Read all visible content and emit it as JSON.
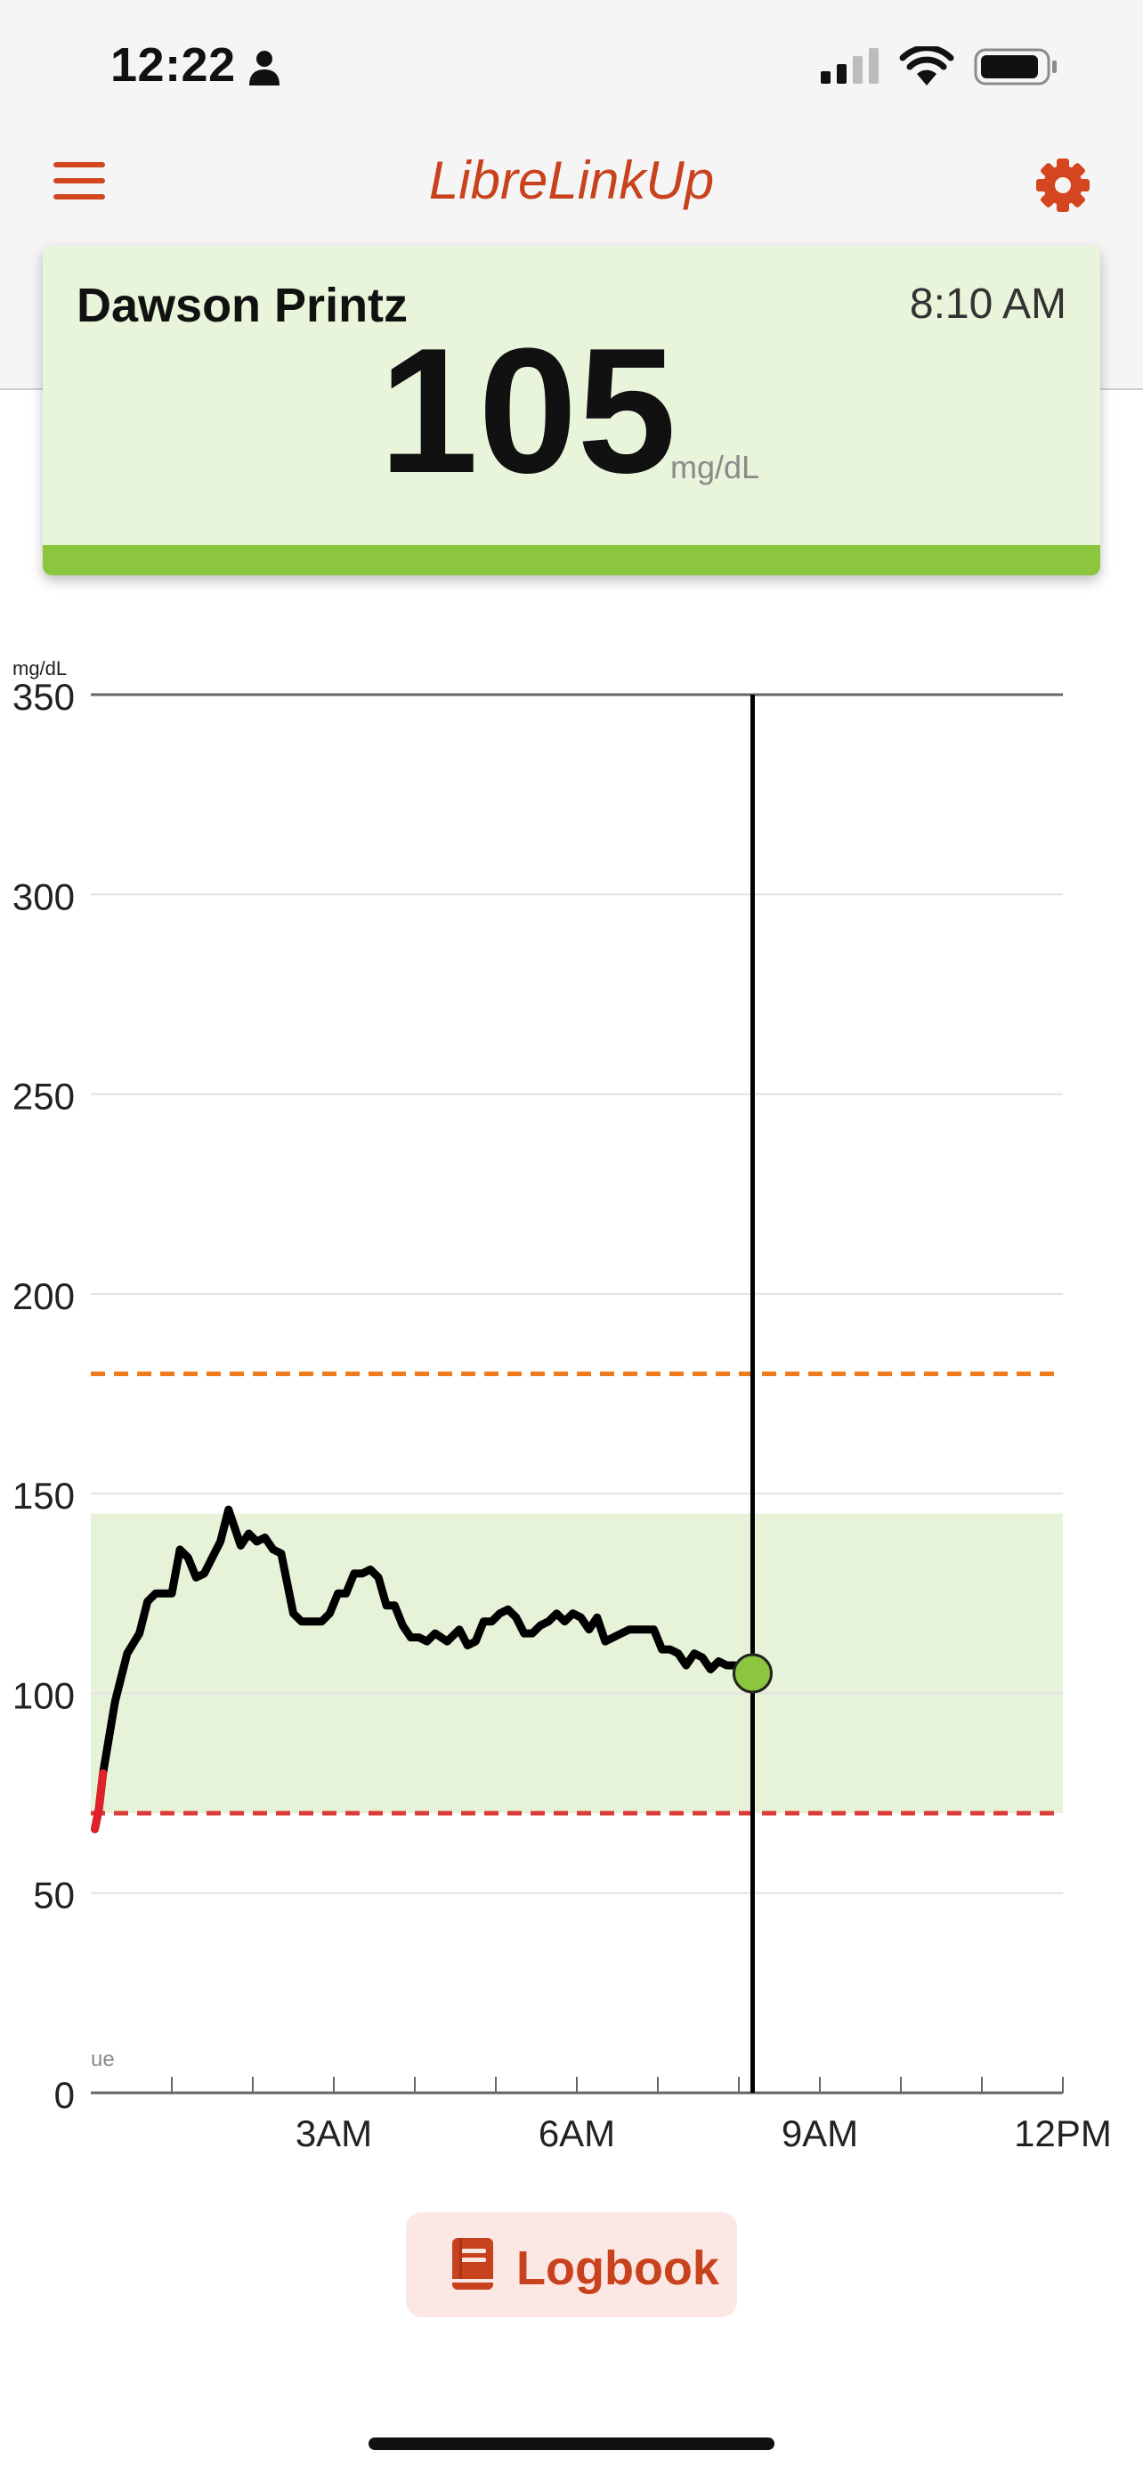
{
  "status_bar": {
    "time": "12:22"
  },
  "header": {
    "title": "LibreLinkUp"
  },
  "patient_card": {
    "name": "Dawson Printz",
    "time": "8:10 AM",
    "value": "105",
    "unit": "mg/dL",
    "status_color": "#8cc63f"
  },
  "chart_data": {
    "type": "line",
    "ylabel": "mg/dL",
    "ylim": [
      0,
      350
    ],
    "xlim": [
      0,
      12
    ],
    "yticks": [
      0,
      50,
      100,
      150,
      200,
      250,
      300,
      350
    ],
    "xtick_labels": [
      {
        "x": 3,
        "label": "3AM"
      },
      {
        "x": 6,
        "label": "6AM"
      },
      {
        "x": 9,
        "label": "9AM"
      },
      {
        "x": 12,
        "label": "12PM"
      }
    ],
    "minor_tick_hours": [
      1,
      2,
      3,
      4,
      5,
      6,
      7,
      8,
      9,
      10,
      11,
      12
    ],
    "corner_label": "ue",
    "target_range": [
      70,
      145
    ],
    "high_threshold": 180,
    "low_threshold": 70,
    "current_point": {
      "x": 8.17,
      "y": 105
    },
    "colors": {
      "line": "#000000",
      "low_segment": "#e0202a",
      "target_band": "#e6f3d9",
      "high_line": "#ee7a1c",
      "low_line": "#dc3a34",
      "current_point": "#8cc63f"
    },
    "series": [
      {
        "x": [
          0.05,
          0.1,
          0.15,
          0.3,
          0.45,
          0.6,
          0.7,
          0.8,
          1.0,
          1.1,
          1.2,
          1.3,
          1.4,
          1.5,
          1.6,
          1.7,
          1.85,
          1.95,
          2.05,
          2.15,
          2.25,
          2.35,
          2.5,
          2.6,
          2.7,
          2.85,
          2.95,
          3.05,
          3.15,
          3.25,
          3.35,
          3.45,
          3.55,
          3.65,
          3.75,
          3.85,
          3.95,
          4.05,
          4.15,
          4.25,
          4.4,
          4.55,
          4.65,
          4.75,
          4.85,
          4.95,
          5.05,
          5.15,
          5.25,
          5.35,
          5.45,
          5.55,
          5.65,
          5.75,
          5.85,
          5.95,
          6.05,
          6.15,
          6.25,
          6.35,
          6.45,
          6.55,
          6.65,
          6.75,
          6.85,
          6.95,
          7.05,
          7.15,
          7.25,
          7.35,
          7.45,
          7.55,
          7.65,
          7.75,
          7.85,
          7.95,
          8.05,
          8.17
        ],
        "y": [
          66,
          71,
          80,
          98,
          110,
          115,
          123,
          125,
          125,
          136,
          134,
          129,
          130,
          134,
          138,
          146,
          137,
          140,
          138,
          139,
          136,
          135,
          120,
          118,
          118,
          118,
          120,
          125,
          125,
          130,
          130,
          131,
          129,
          122,
          122,
          117,
          114,
          114,
          113,
          115,
          113,
          116,
          112,
          113,
          118,
          118,
          120,
          121,
          119,
          115,
          115,
          117,
          118,
          120,
          118,
          120,
          119,
          116,
          119,
          113,
          114,
          115,
          116,
          116,
          116,
          116,
          111,
          111,
          110,
          107,
          110,
          109,
          106,
          108,
          107,
          107,
          106,
          105
        ]
      }
    ]
  },
  "logbook": {
    "label": "Logbook"
  }
}
